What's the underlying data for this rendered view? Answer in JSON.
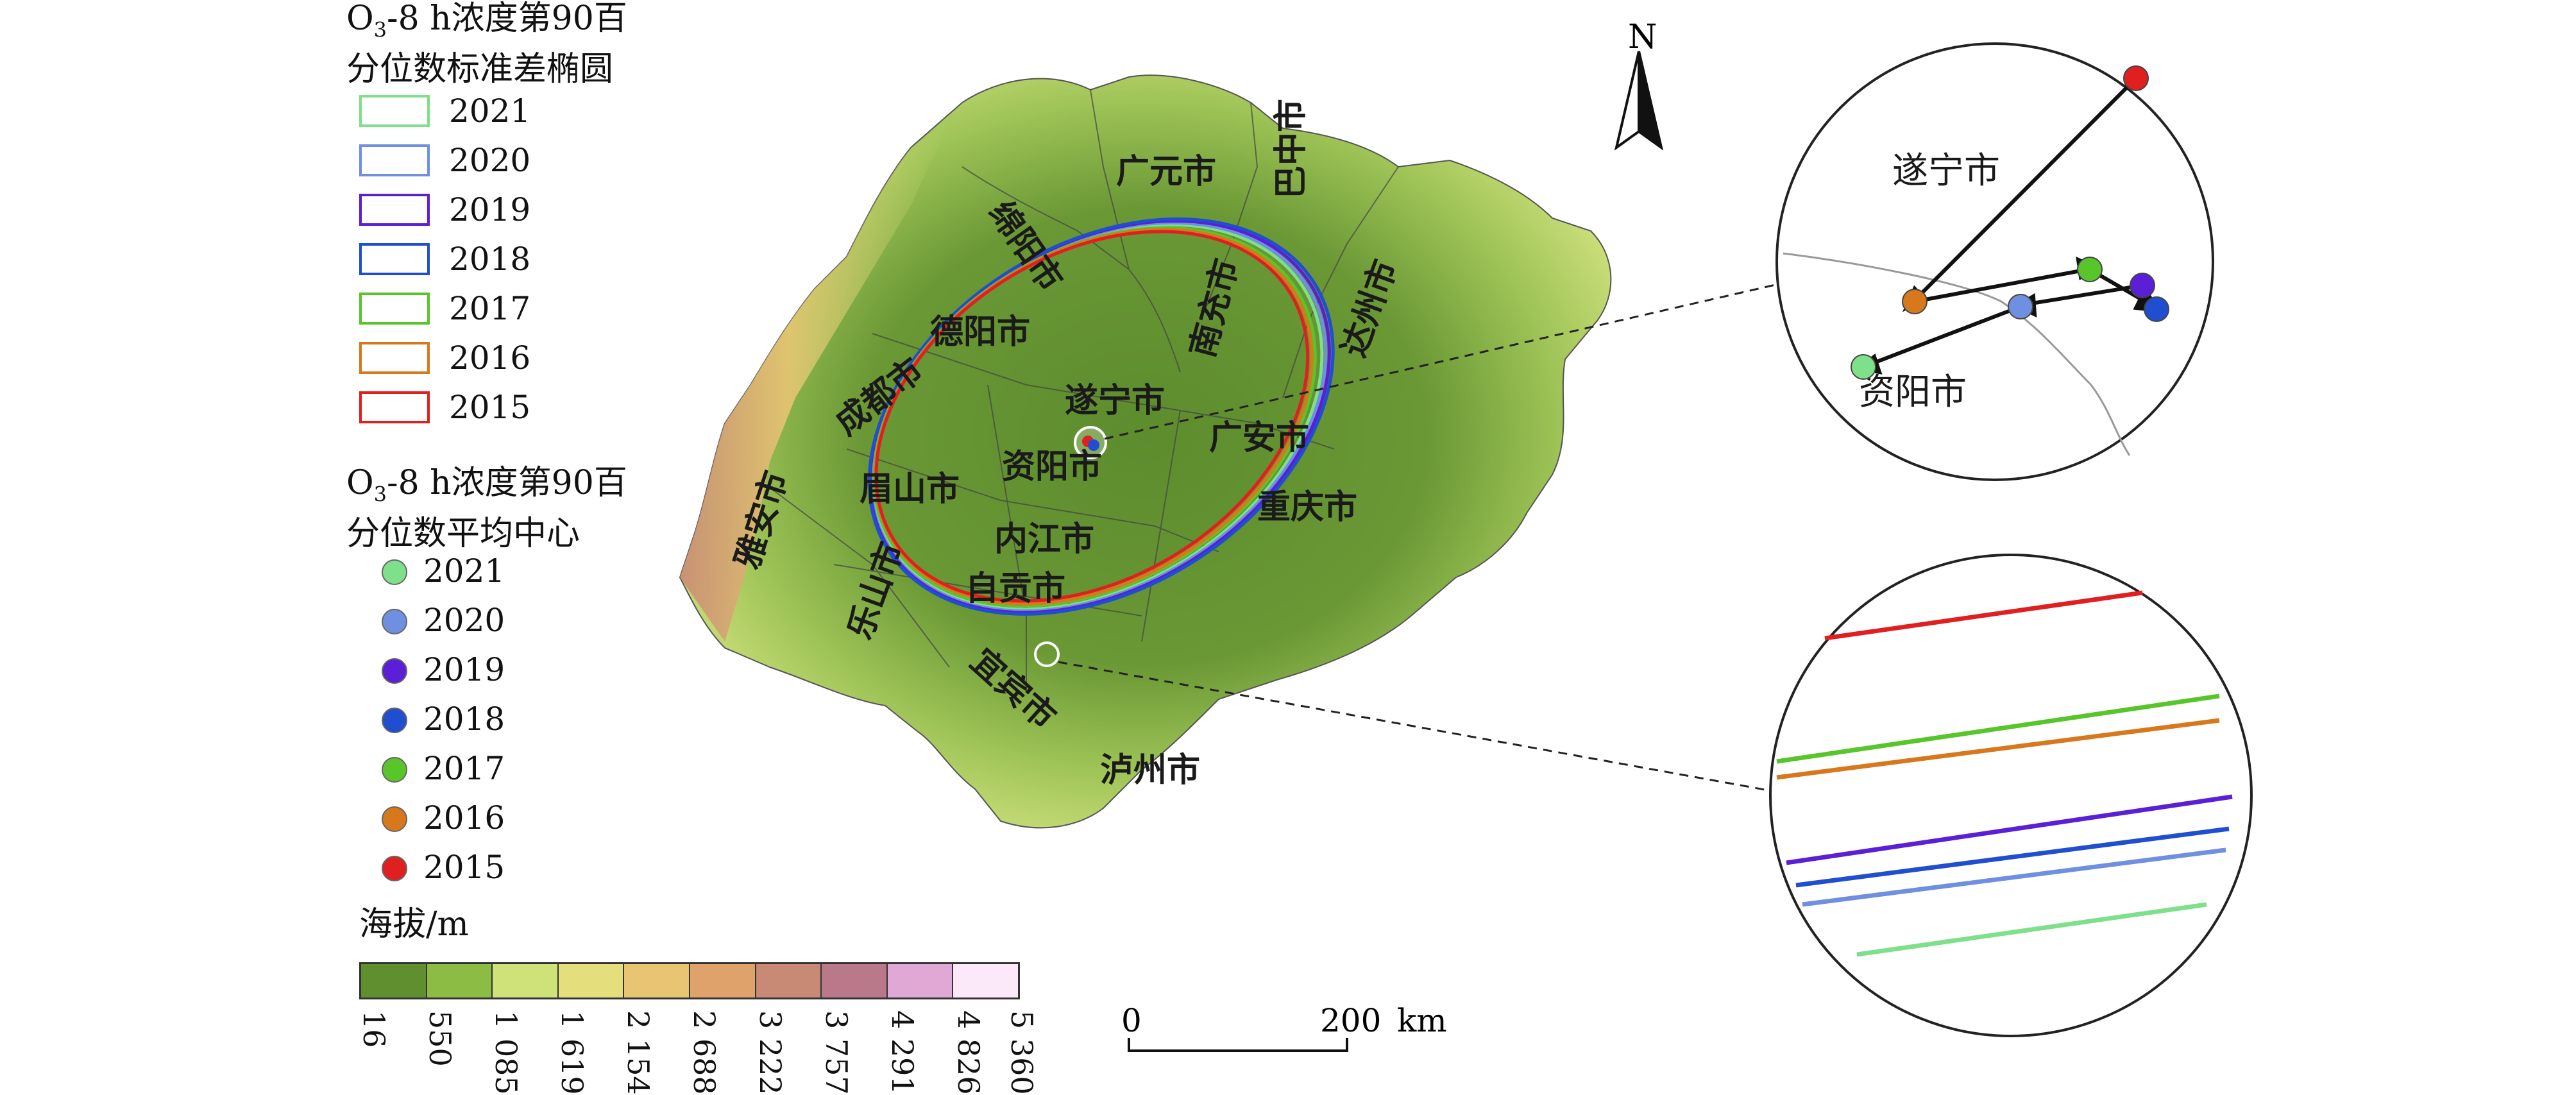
{
  "legend_ellipse": {
    "title_main": "O",
    "title_sub": "3",
    "title_line1_rest": "-8 h浓度第90百",
    "title_line2": "分位数标准差椭圆",
    "items": [
      {
        "year": "2021",
        "color": "#7ee08a"
      },
      {
        "year": "2020",
        "color": "#6f8fe0"
      },
      {
        "year": "2019",
        "color": "#5a1fd6"
      },
      {
        "year": "2018",
        "color": "#1f4fd0"
      },
      {
        "year": "2017",
        "color": "#58c62a"
      },
      {
        "year": "2016",
        "color": "#d8781c"
      },
      {
        "year": "2015",
        "color": "#e02020"
      }
    ]
  },
  "legend_center": {
    "title_main": "O",
    "title_sub": "3",
    "title_line1_rest": "-8 h浓度第90百",
    "title_line2": "分位数平均中心",
    "items": [
      {
        "year": "2021",
        "color": "#7ee08a"
      },
      {
        "year": "2020",
        "color": "#6f8fe0"
      },
      {
        "year": "2019",
        "color": "#5a1fd6"
      },
      {
        "year": "2018",
        "color": "#1f4fd0"
      },
      {
        "year": "2017",
        "color": "#58c62a"
      },
      {
        "year": "2016",
        "color": "#d8781c"
      },
      {
        "year": "2015",
        "color": "#e02020"
      }
    ]
  },
  "elevation": {
    "title": "海拔/m",
    "colors": [
      "#5f8f2f",
      "#8dbc45",
      "#cfe27a",
      "#e4df7c",
      "#e8c573",
      "#dea26a",
      "#c98a75",
      "#b9798a",
      "#e0a8d4",
      "#fbe8f8"
    ],
    "ticks": [
      "16",
      "550",
      "1 085",
      "1 619",
      "2 154",
      "2 688",
      "3 222",
      "3 757",
      "4 291",
      "4 826",
      "5 360"
    ]
  },
  "scale_bar": {
    "start": "0",
    "end": "200",
    "unit": "km"
  },
  "north_label": "N",
  "cities": [
    "广元市",
    "巴中市",
    "绵阳市",
    "达州市",
    "德阳市",
    "南充市",
    "成都市",
    "遂宁市",
    "广安市",
    "雅安市",
    "资阳市",
    "眉山市",
    "重庆市",
    "内江市",
    "乐山市",
    "自贡市",
    "宜宾市",
    "泸州市"
  ],
  "inset_top": {
    "labels": [
      "遂宁市",
      "资阳市"
    ]
  }
}
